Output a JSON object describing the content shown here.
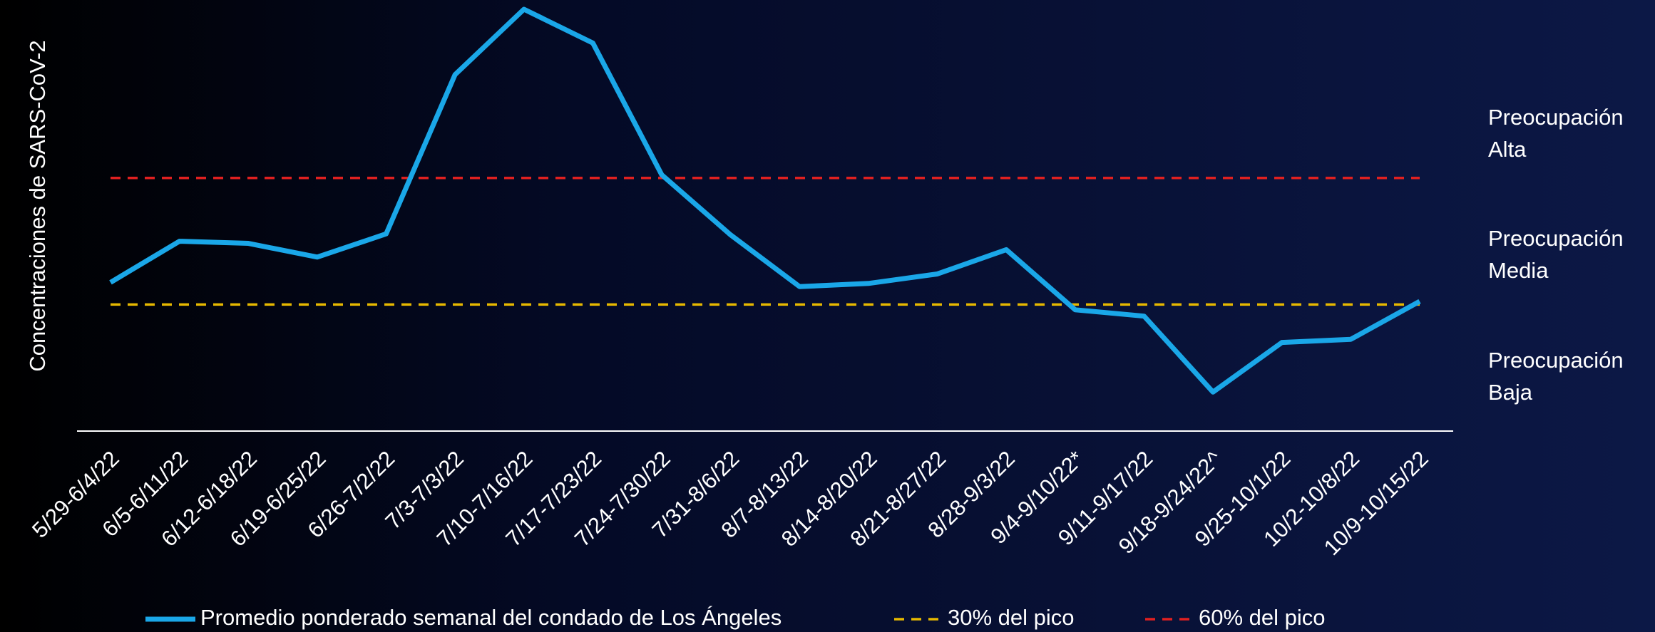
{
  "chart_data": {
    "type": "line",
    "y_label": "Concentraciones de SARS-CoV-2",
    "categories": [
      "5/29-6/4/22",
      "6/5-6/11/22",
      "6/12-6/18/22",
      "6/19-6/25/22",
      "6/26-7/2/22",
      "7/3-7/3/22",
      "7/10-7/16/22",
      "7/17-7/23/22",
      "7/24-7/30/22",
      "7/31-8/6/22",
      "8/7-8/13/22",
      "8/14-8/20/22",
      "8/21-8/27/22",
      "8/28-9/3/22",
      "9/4-9/10/22*",
      "9/11-9/17/22",
      "9/18-9/24/22^",
      "9/25-10/1/22",
      "10/2-10/8/22",
      "10/9-10/15/22"
    ],
    "series": [
      {
        "name": "Promedio ponderado semanal del condado de Los Ángeles",
        "color": "#1aa7e8",
        "values": [
          35.25,
          45,
          44.5,
          41.25,
          46.75,
          84.5,
          100,
          92,
          60.75,
          46.5,
          34.25,
          35,
          37.25,
          43,
          28.75,
          27.25,
          9.25,
          21,
          21.75,
          30.75
        ]
      }
    ],
    "reference_lines": [
      {
        "name": "30% del pico",
        "value": 30,
        "color": "#e6b800"
      },
      {
        "name": "60% del pico",
        "value": 60,
        "color": "#e02020"
      }
    ],
    "zone_labels": [
      [
        "Preocupación",
        "Alta"
      ],
      [
        "Preocupación",
        "Media"
      ],
      [
        "Preocupación",
        "Baja"
      ]
    ],
    "ylim": [
      0,
      100
    ]
  }
}
